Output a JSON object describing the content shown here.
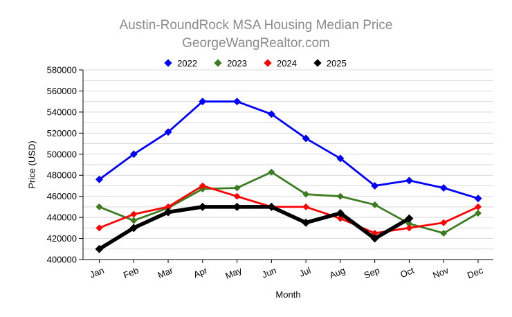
{
  "style": {
    "background": "#ffffff",
    "title_color": "#8a8a8a",
    "grid_color": "#d9d9d9",
    "axis_color": "#000000",
    "text_color": "#000000"
  },
  "chart_data": {
    "type": "line",
    "title": "Austin-RoundRock MSA Housing Median Price",
    "subtitle": "GeorgeWangRealtor.com",
    "xlabel": "Month",
    "ylabel": "Price (USD)",
    "categories": [
      "Jan",
      "Feb",
      "Mar",
      "Apr",
      "May",
      "Jun",
      "Jul",
      "Aug",
      "Sep",
      "Oct",
      "Nov",
      "Dec"
    ],
    "ylim": [
      400000,
      580000
    ],
    "ytick_label_step": 20000,
    "grid_step": 10000,
    "grid": true,
    "legend_position": "top",
    "marker": "diamond",
    "series": [
      {
        "name": "2022",
        "color": "#0000ff",
        "line_width": 2.8,
        "marker_size": 5.5,
        "values": [
          476000,
          500000,
          521000,
          550000,
          550000,
          538000,
          515000,
          496000,
          470000,
          475000,
          468000,
          458000
        ]
      },
      {
        "name": "2023",
        "color": "#3d7d21",
        "line_width": 2.8,
        "marker_size": 5,
        "values": [
          450000,
          437000,
          449000,
          467000,
          468000,
          483000,
          462000,
          460000,
          452000,
          434000,
          425000,
          444000
        ]
      },
      {
        "name": "2024",
        "color": "#ff0000",
        "line_width": 2.8,
        "marker_size": 5,
        "values": [
          430000,
          443000,
          450000,
          470000,
          460000,
          450000,
          450000,
          439000,
          425000,
          430000,
          435000,
          450000
        ]
      },
      {
        "name": "2025",
        "color": "#000000",
        "line_width": 5.5,
        "marker_size": 6,
        "values": [
          410000,
          430000,
          445000,
          450000,
          450000,
          450000,
          435000,
          444000,
          420000,
          439000,
          null,
          null
        ]
      }
    ]
  }
}
